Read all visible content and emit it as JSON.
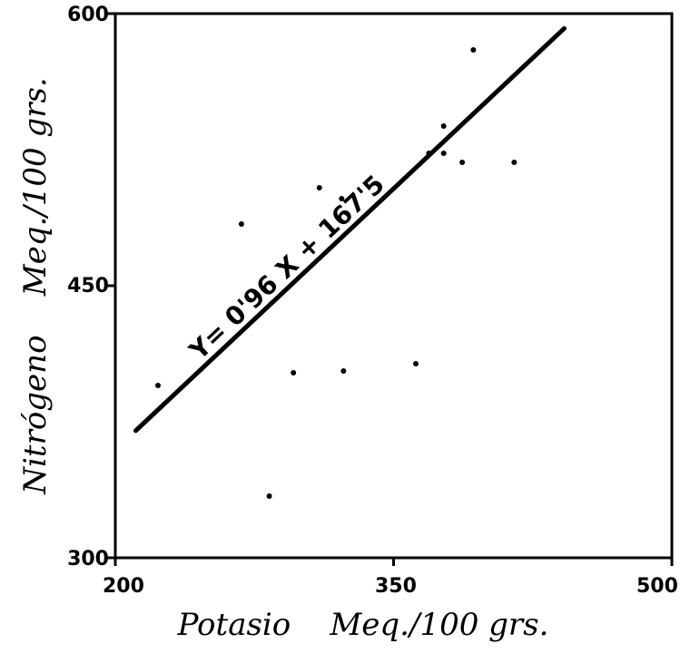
{
  "chart_data": {
    "type": "scatter",
    "title": "",
    "xlabel": "Potasio    Meq./100 grs.",
    "ylabel": "Nitrógeno    Meq./100 grs.",
    "xlim": [
      200,
      500
    ],
    "ylim": [
      300,
      600
    ],
    "x_ticks": [
      "200",
      "350",
      "500"
    ],
    "y_ticks": [
      "300",
      "450",
      "600"
    ],
    "grid": false,
    "points": [
      {
        "x": 223,
        "y": 395
      },
      {
        "x": 268,
        "y": 484
      },
      {
        "x": 283,
        "y": 334
      },
      {
        "x": 296,
        "y": 402
      },
      {
        "x": 310,
        "y": 504
      },
      {
        "x": 322,
        "y": 498
      },
      {
        "x": 323,
        "y": 403
      },
      {
        "x": 362,
        "y": 407
      },
      {
        "x": 369,
        "y": 523
      },
      {
        "x": 377,
        "y": 523
      },
      {
        "x": 377,
        "y": 538
      },
      {
        "x": 387,
        "y": 518
      },
      {
        "x": 393,
        "y": 580
      },
      {
        "x": 415,
        "y": 518
      }
    ],
    "fit_line": {
      "slope": 0.96,
      "intercept": 167.5,
      "x_start": 211,
      "x_end": 442
    },
    "annotation": "Y= 0'96 X + 167'5"
  }
}
